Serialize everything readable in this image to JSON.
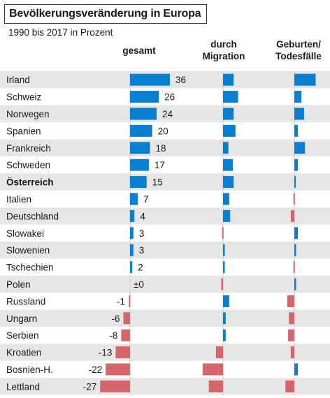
{
  "title": "Bevölkerungsveränderung in Europa",
  "subtitle": "1990 bis 2017 in Prozent",
  "headers": {
    "total": "gesamt",
    "migration": "durch\nMigration",
    "natural": "Geburten/\nTodesfälle"
  },
  "colors": {
    "positive": "#0a7fd0",
    "negative": "#d4656b",
    "band": "#e6e6e6",
    "axis": "#cccccc"
  },
  "chart_data": {
    "type": "bar",
    "categories": [
      "Irland",
      "Schweiz",
      "Norwegen",
      "Spanien",
      "Frankreich",
      "Schweden",
      "Österreich",
      "Italien",
      "Deutschland",
      "Slowakei",
      "Slowenien",
      "Tschechien",
      "Polen",
      "Russland",
      "Ungarn",
      "Serbien",
      "Kroatien",
      "Bosnien-H.",
      "Lettland"
    ],
    "highlight": [
      "Österreich"
    ],
    "series": [
      {
        "name": "gesamt",
        "values": [
          36,
          26,
          24,
          20,
          18,
          17,
          15,
          7,
          4,
          3,
          3,
          2,
          0,
          -1,
          -6,
          -8,
          -13,
          -22,
          -27
        ],
        "value_labels": [
          "36",
          "26",
          "24",
          "20",
          "18",
          "17",
          "15",
          "7",
          "4",
          "3",
          "3",
          "2",
          "±0",
          "-1",
          "-6",
          "-8",
          "-13",
          "-22",
          "-27"
        ]
      },
      {
        "name": "durch Migration",
        "values": [
          12,
          17,
          12,
          14,
          6,
          11,
          12,
          7,
          8,
          -1,
          2,
          2,
          -2,
          7,
          3,
          3,
          -8,
          -23,
          -16
        ]
      },
      {
        "name": "Geburten/Todesfälle",
        "values": [
          24,
          8,
          11,
          4,
          12,
          4,
          1,
          -1,
          -4,
          4,
          2,
          -1,
          2,
          -8,
          -6,
          -7,
          -4,
          4,
          -10
        ]
      }
    ]
  }
}
